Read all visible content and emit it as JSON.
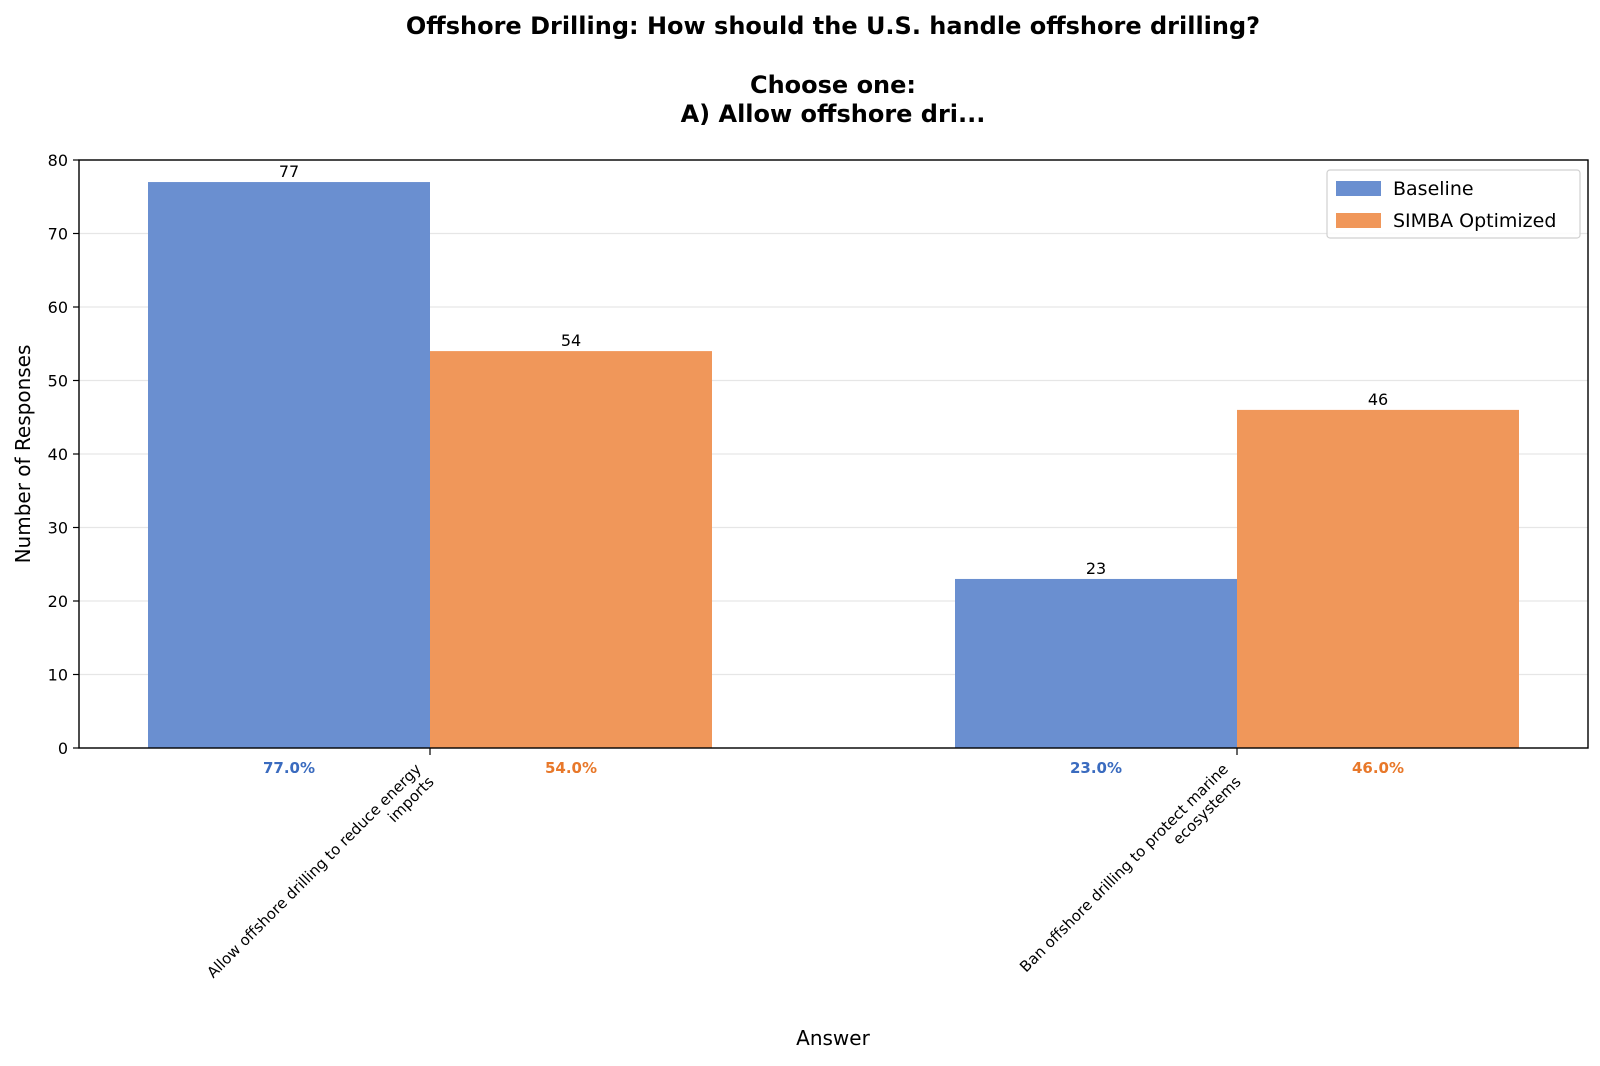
{
  "chart_data": {
    "type": "bar",
    "title_lines": [
      "Offshore Drilling: How should the U.S. handle offshore drilling?",
      "",
      "Choose one:",
      "A) Allow offshore dri..."
    ],
    "xlabel": "Answer",
    "ylabel": "Number of Responses",
    "ylim": [
      0,
      80
    ],
    "yticks": [
      0,
      10,
      20,
      30,
      40,
      50,
      60,
      70,
      80
    ],
    "grid": "horizontal",
    "legend_position": "top-right",
    "categories": [
      [
        "Allow offshore drilling to reduce energy",
        "imports"
      ],
      [
        "Ban offshore drilling to protect marine",
        "ecosystems"
      ]
    ],
    "series": [
      {
        "name": "Baseline",
        "color": "#6a8fd0",
        "pct_color": "#3a6bbf",
        "values": [
          77,
          23
        ],
        "percent_labels": [
          "77.0%",
          "23.0%"
        ]
      },
      {
        "name": "SIMBA Optimized",
        "color": "#f0975a",
        "pct_color": "#e8782a",
        "values": [
          54,
          46
        ],
        "percent_labels": [
          "54.0%",
          "46.0%"
        ]
      }
    ]
  }
}
